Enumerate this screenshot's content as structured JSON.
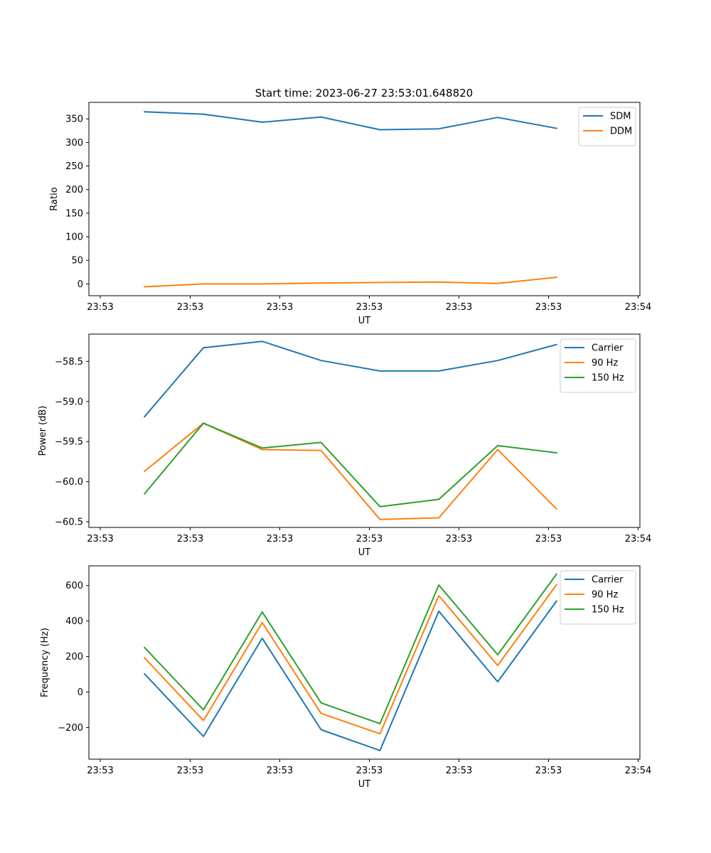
{
  "chart_data": [
    {
      "type": "line",
      "title": "Start time: 2023-06-27 23:53:01.648820",
      "xlabel": "UT",
      "ylabel": "Ratio",
      "x_tick_labels": [
        "23:53",
        "23:53",
        "23:53",
        "23:53",
        "23:53",
        "23:53",
        "23:54"
      ],
      "yticks": [
        0,
        50,
        100,
        150,
        200,
        250,
        300,
        350
      ],
      "ylim": [
        -25,
        385
      ],
      "x": [
        1,
        2,
        3,
        4,
        5,
        6,
        7,
        8
      ],
      "legend_position": "top-right",
      "grid": false,
      "series": [
        {
          "name": "SDM",
          "color": "#1f77b4",
          "values": [
            365,
            360,
            343,
            354,
            327,
            329,
            353,
            330
          ]
        },
        {
          "name": "DDM",
          "color": "#ff7f0e",
          "values": [
            -6,
            0,
            0,
            2,
            3,
            4,
            1,
            14
          ]
        }
      ]
    },
    {
      "type": "line",
      "title": "",
      "xlabel": "UT",
      "ylabel": "Power (dB)",
      "x_tick_labels": [
        "23:53",
        "23:53",
        "23:53",
        "23:53",
        "23:53",
        "23:53",
        "23:54"
      ],
      "yticks": [
        -60.5,
        -60.0,
        -59.5,
        -59.0,
        -58.5
      ],
      "ytick_labels": [
        "−60.5",
        "−60.0",
        "−59.5",
        "−59.0",
        "−58.5"
      ],
      "ylim": [
        -60.57,
        -58.16
      ],
      "x": [
        1,
        2,
        3,
        4,
        5,
        6,
        7,
        8
      ],
      "legend_position": "top-right",
      "grid": false,
      "series": [
        {
          "name": "Carrier",
          "color": "#1f77b4",
          "values": [
            -59.19,
            -58.33,
            -58.25,
            -58.49,
            -58.62,
            -58.62,
            -58.49,
            -58.29
          ]
        },
        {
          "name": "90 Hz",
          "color": "#ff7f0e",
          "values": [
            -59.87,
            -59.27,
            -59.6,
            -59.61,
            -60.47,
            -60.45,
            -59.6,
            -60.34
          ]
        },
        {
          "name": "150 Hz",
          "color": "#2ca02c",
          "values": [
            -60.15,
            -59.27,
            -59.58,
            -59.51,
            -60.31,
            -60.22,
            -59.55,
            -59.64
          ]
        }
      ]
    },
    {
      "type": "line",
      "title": "",
      "xlabel": "UT",
      "ylabel": "Frequency (Hz)",
      "x_tick_labels": [
        "23:53",
        "23:53",
        "23:53",
        "23:53",
        "23:53",
        "23:53",
        "23:54"
      ],
      "yticks": [
        -200,
        0,
        200,
        400,
        600
      ],
      "ytick_labels": [
        "−200",
        "0",
        "200",
        "400",
        "600"
      ],
      "ylim": [
        -378,
        711
      ],
      "x": [
        1,
        2,
        3,
        4,
        5,
        6,
        7,
        8
      ],
      "legend_position": "top-right",
      "grid": false,
      "series": [
        {
          "name": "Carrier",
          "color": "#1f77b4",
          "values": [
            102,
            -250,
            303,
            -212,
            -329,
            455,
            58,
            512
          ]
        },
        {
          "name": "90 Hz",
          "color": "#ff7f0e",
          "values": [
            192,
            -160,
            391,
            -120,
            -235,
            543,
            150,
            604
          ]
        },
        {
          "name": "150 Hz",
          "color": "#2ca02c",
          "values": [
            251,
            -100,
            451,
            -61,
            -178,
            603,
            210,
            664
          ]
        }
      ]
    }
  ]
}
